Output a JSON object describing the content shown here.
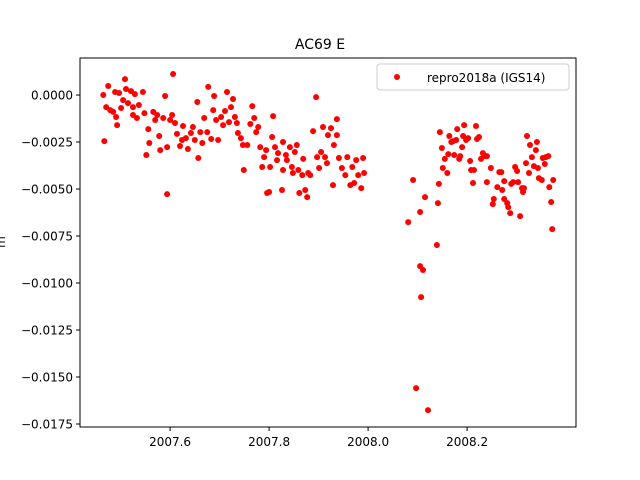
{
  "chart_data": {
    "type": "scatter",
    "title": "AC69 E",
    "xlabel": "",
    "ylabel": "m",
    "xlim": [
      2007.418,
      2008.42
    ],
    "ylim": [
      -0.01766,
      0.00197
    ],
    "grid": false,
    "legend_position": "top-right",
    "x_ticks": [
      2007.6,
      2007.8,
      2008.0,
      2008.2
    ],
    "x_tick_labels": [
      "2007.6",
      "2007.8",
      "2008.0",
      "2008.2"
    ],
    "y_ticks": [
      0,
      -0.0025,
      -0.005,
      -0.0075,
      -0.01,
      -0.0125,
      -0.015,
      -0.0175
    ],
    "y_tick_labels": [
      "0.0000",
      "−0.0025",
      "−0.0050",
      "−0.0075",
      "−0.0100",
      "−0.0125",
      "−0.0150",
      "−0.0175"
    ],
    "series": [
      {
        "name": "repro2018a (IGS14)",
        "color": "#ff0000",
        "marker": "circle",
        "points": [
          [
            2007.465,
            0
          ],
          [
            2007.467,
            -0.00245
          ],
          [
            2007.475,
            0.00048
          ],
          [
            2007.471,
            -0.00064
          ],
          [
            2007.479,
            -0.0008
          ],
          [
            2007.485,
            -0.0009
          ],
          [
            2007.491,
            -0.00117
          ],
          [
            2007.493,
            -0.0016
          ],
          [
            2007.489,
            0.00016
          ],
          [
            2007.497,
            0.00011
          ],
          [
            2007.501,
            -0.00069
          ],
          [
            2007.505,
            -0.00027
          ],
          [
            2007.509,
            0.00085
          ],
          [
            2007.511,
            0.00032
          ],
          [
            2007.515,
            -0.00043
          ],
          [
            2007.521,
            0.00021
          ],
          [
            2007.525,
            -0.00064
          ],
          [
            2007.525,
            -0.00106
          ],
          [
            2007.529,
            5e-05
          ],
          [
            2007.533,
            -0.00122
          ],
          [
            2007.537,
            -0.00053
          ],
          [
            2007.545,
            0.00016
          ],
          [
            2007.548,
            -0.00096
          ],
          [
            2007.552,
            -0.00319
          ],
          [
            2007.556,
            -0.00181
          ],
          [
            2007.558,
            -0.00255
          ],
          [
            2007.566,
            -0.0009
          ],
          [
            2007.57,
            -0.00133
          ],
          [
            2007.574,
            -0.00106
          ],
          [
            2007.578,
            -0.00218
          ],
          [
            2007.58,
            -0.00293
          ],
          [
            2007.586,
            -0.00122
          ],
          [
            2007.59,
            -5e-05
          ],
          [
            2007.594,
            -0.00277
          ],
          [
            2007.594,
            -0.00527
          ],
          [
            2007.6,
            -0.00133
          ],
          [
            2007.604,
            -0.00106
          ],
          [
            2007.606,
            0.00112
          ],
          [
            2007.61,
            -0.00149
          ],
          [
            2007.614,
            -0.00207
          ],
          [
            2007.62,
            -0.00271
          ],
          [
            2007.624,
            -0.00239
          ],
          [
            2007.626,
            -0.00165
          ],
          [
            2007.632,
            -0.00229
          ],
          [
            2007.636,
            -0.00287
          ],
          [
            2007.642,
            -0.00202
          ],
          [
            2007.646,
            -0.0017
          ],
          [
            2007.65,
            -0.00239
          ],
          [
            2007.655,
            -0.00037
          ],
          [
            2007.657,
            -0.00335
          ],
          [
            2007.661,
            -0.00197
          ],
          [
            2007.665,
            -0.00255
          ],
          [
            2007.669,
            -0.00122
          ],
          [
            2007.675,
            -0.00197
          ],
          [
            2007.677,
            0.00043
          ],
          [
            2007.683,
            -0.00234
          ],
          [
            2007.687,
            -0.0008
          ],
          [
            2007.689,
            -5e-05
          ],
          [
            2007.693,
            -0.00133
          ],
          [
            2007.697,
            -0.00239
          ],
          [
            2007.703,
            -0.00117
          ],
          [
            2007.707,
            -0.0016
          ],
          [
            2007.711,
            -0.00085
          ],
          [
            2007.715,
            0.00016
          ],
          [
            2007.719,
            -0.00144
          ],
          [
            2007.723,
            -0.00064
          ],
          [
            2007.727,
            -0.00021
          ],
          [
            2007.731,
            -0.00117
          ],
          [
            2007.735,
            -0.00149
          ],
          [
            2007.737,
            -0.00202
          ],
          [
            2007.743,
            -0.00229
          ],
          [
            2007.747,
            -0.00266
          ],
          [
            2007.749,
            -0.00399
          ],
          [
            2007.756,
            -0.00266
          ],
          [
            2007.762,
            -0.00154
          ],
          [
            2007.766,
            -0.00059
          ],
          [
            2007.77,
            -0.00122
          ],
          [
            2007.774,
            -0.00197
          ],
          [
            2007.778,
            -0.0017
          ],
          [
            2007.782,
            -0.00277
          ],
          [
            2007.786,
            -0.00383
          ],
          [
            2007.79,
            -0.0033
          ],
          [
            2007.794,
            -0.00293
          ],
          [
            2007.796,
            -0.00521
          ],
          [
            2007.8,
            -0.00516
          ],
          [
            2007.802,
            -0.00383
          ],
          [
            2007.806,
            -0.00223
          ],
          [
            2007.808,
            -0.00112
          ],
          [
            2007.812,
            -0.00277
          ],
          [
            2007.816,
            -0.00346
          ],
          [
            2007.818,
            -0.00309
          ],
          [
            2007.826,
            -0.00505
          ],
          [
            2007.828,
            -0.00399
          ],
          [
            2007.828,
            -0.0025
          ],
          [
            2007.834,
            -0.00319
          ],
          [
            2007.836,
            -0.00346
          ],
          [
            2007.842,
            -0.00277
          ],
          [
            2007.846,
            -0.00383
          ],
          [
            2007.848,
            -0.00415
          ],
          [
            2007.852,
            -0.00303
          ],
          [
            2007.856,
            -0.00266
          ],
          [
            2007.859,
            -0.00399
          ],
          [
            2007.861,
            -0.00521
          ],
          [
            2007.867,
            -0.00426
          ],
          [
            2007.869,
            -0.0034
          ],
          [
            2007.873,
            -0.00505
          ],
          [
            2007.877,
            -0.00543
          ],
          [
            2007.879,
            -0.00415
          ],
          [
            2007.883,
            -0.00426
          ],
          [
            2007.889,
            -0.00192
          ],
          [
            2007.895,
            -0.00011
          ],
          [
            2007.897,
            -0.0033
          ],
          [
            2007.901,
            -0.00388
          ],
          [
            2007.905,
            -0.00303
          ],
          [
            2007.909,
            -0.0017
          ],
          [
            2007.913,
            -0.0033
          ],
          [
            2007.917,
            -0.00362
          ],
          [
            2007.919,
            -0.00213
          ],
          [
            2007.925,
            -0.00176
          ],
          [
            2007.929,
            -0.00479
          ],
          [
            2007.931,
            -0.00266
          ],
          [
            2007.937,
            -0.00128
          ],
          [
            2007.937,
            -0.00213
          ],
          [
            2007.941,
            -0.00335
          ],
          [
            2007.947,
            -0.00388
          ],
          [
            2007.954,
            -0.00426
          ],
          [
            2007.958,
            -0.0033
          ],
          [
            2007.964,
            -0.00479
          ],
          [
            2007.968,
            -0.00383
          ],
          [
            2007.972,
            -0.00468
          ],
          [
            2007.976,
            -0.00346
          ],
          [
            2007.98,
            -0.00426
          ],
          [
            2007.986,
            -0.00495
          ],
          [
            2007.99,
            -0.00335
          ],
          [
            2007.992,
            -0.00415
          ],
          [
            2008.081,
            -0.00676
          ],
          [
            2008.091,
            -0.00452
          ],
          [
            2008.105,
            -0.00622
          ],
          [
            2008.115,
            -0.00543
          ],
          [
            2008.141,
            -0.00575
          ],
          [
            2008.143,
            -0.00473
          ],
          [
            2008.145,
            -0.00197
          ],
          [
            2008.149,
            -0.00282
          ],
          [
            2008.151,
            -0.00388
          ],
          [
            2008.155,
            -0.0034
          ],
          [
            2008.16,
            -0.00415
          ],
          [
            2008.162,
            -0.00314
          ],
          [
            2008.164,
            -0.00218
          ],
          [
            2008.168,
            -0.0025
          ],
          [
            2008.172,
            -0.00245
          ],
          [
            2008.174,
            -0.00319
          ],
          [
            2008.178,
            -0.00239
          ],
          [
            2008.18,
            -0.00181
          ],
          [
            2008.184,
            -0.0034
          ],
          [
            2008.186,
            -0.00325
          ],
          [
            2008.19,
            -0.00277
          ],
          [
            2008.192,
            -0.00218
          ],
          [
            2008.194,
            -0.0016
          ],
          [
            2008.198,
            -0.00239
          ],
          [
            2008.202,
            -0.00229
          ],
          [
            2008.206,
            -0.00351
          ],
          [
            2008.208,
            -0.00399
          ],
          [
            2008.212,
            -0.00468
          ],
          [
            2008.214,
            -0.00399
          ],
          [
            2008.218,
            -0.00165
          ],
          [
            2008.22,
            -0.00234
          ],
          [
            2008.224,
            -0.00223
          ],
          [
            2008.228,
            -0.0034
          ],
          [
            2008.232,
            -0.00309
          ],
          [
            2008.236,
            -0.00325
          ],
          [
            2008.24,
            -0.00325
          ],
          [
            2008.24,
            -0.00463
          ],
          [
            2008.248,
            -0.00388
          ],
          [
            2008.252,
            -0.0058
          ],
          [
            2008.254,
            -0.00553
          ],
          [
            2008.261,
            -0.0049
          ],
          [
            2008.265,
            -0.0041
          ],
          [
            2008.269,
            -0.0041
          ],
          [
            2008.271,
            -0.00505
          ],
          [
            2008.275,
            -0.00553
          ],
          [
            2008.275,
            -0.00458
          ],
          [
            2008.281,
            -0.00575
          ],
          [
            2008.283,
            -0.00596
          ],
          [
            2008.287,
            -0.00628
          ],
          [
            2008.289,
            -0.00473
          ],
          [
            2008.293,
            -0.00463
          ],
          [
            2008.297,
            -0.00383
          ],
          [
            2008.301,
            -0.00404
          ],
          [
            2008.303,
            -0.00463
          ],
          [
            2008.307,
            -0.00644
          ],
          [
            2008.311,
            -0.00495
          ],
          [
            2008.313,
            -0.00516
          ],
          [
            2008.315,
            -0.00495
          ],
          [
            2008.319,
            -0.00362
          ],
          [
            2008.321,
            -0.00218
          ],
          [
            2008.325,
            -0.00415
          ],
          [
            2008.327,
            -0.00266
          ],
          [
            2008.331,
            -0.0033
          ],
          [
            2008.335,
            -0.00378
          ],
          [
            2008.339,
            -0.00293
          ],
          [
            2008.341,
            -0.0025
          ],
          [
            2008.343,
            -0.00388
          ],
          [
            2008.345,
            -0.00442
          ],
          [
            2008.351,
            -0.00452
          ],
          [
            2008.353,
            -0.00335
          ],
          [
            2008.357,
            -0.00367
          ],
          [
            2008.359,
            -0.0033
          ],
          [
            2008.364,
            -0.00325
          ],
          [
            2008.366,
            -0.0049
          ],
          [
            2008.37,
            -0.00569
          ],
          [
            2008.374,
            -0.00452
          ],
          [
            2008.372,
            -0.00713
          ],
          [
            2008.105,
            -0.0091
          ],
          [
            2008.111,
            -0.00931
          ],
          [
            2008.107,
            -0.01075
          ],
          [
            2008.097,
            -0.01559
          ],
          [
            2008.121,
            -0.01676
          ],
          [
            2008.139,
            -0.00798
          ]
        ]
      }
    ]
  }
}
